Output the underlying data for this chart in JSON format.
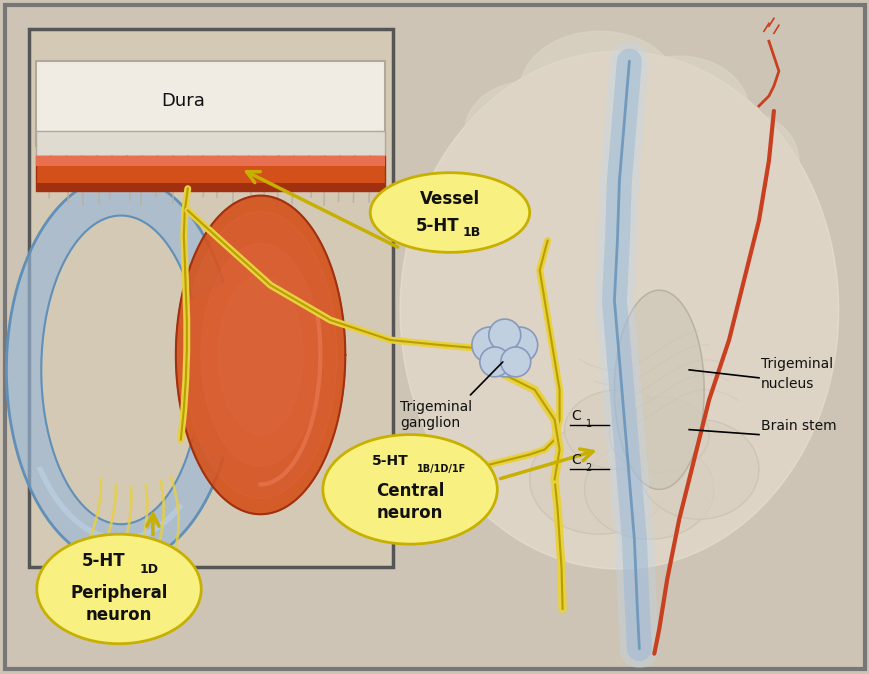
{
  "bg_color": "#cdc4b5",
  "fig_bg": "#cdc4b5",
  "border_color": "#777777",
  "inset_bg": "#d4c9b5",
  "inset_border": "#555555",
  "dura_color": "#f0ece4",
  "dura_stripe": "#c8c0b0",
  "vessel_orange": "#d4501a",
  "vessel_orange_light": "#e87050",
  "vessel_orange_dark": "#a03010",
  "blue_nerve": "#9ab8d8",
  "blue_nerve_dark": "#6090b8",
  "blue_nerve_light": "#c0d8ee",
  "red_nerve": "#c84020",
  "yellow_nerve": "#e8d040",
  "yellow_nerve_dark": "#b8a000",
  "ellipse_fill": "#f8f080",
  "ellipse_edge": "#c8b000",
  "brain_bg": "#ddd5c5",
  "brain_highlight": "#ede5d5",
  "arrow_color": "#c8b000",
  "text_color": "#111111",
  "labels": {
    "dura": "Dura",
    "vessel": "Vessel\n5-HT",
    "vessel_sub": "1B",
    "trigeminal_ganglion": "Trigeminal\nganglion",
    "peripheral": "5-HT",
    "peripheral_sub": "1D",
    "peripheral_rest": "\nPeripheral\nneuron",
    "central": "5-HT",
    "central_sub": "1B/1D/1F",
    "central_rest": "\nCentral\nneuron",
    "trigeminal_nucleus": "Trigeminal\nnucleus",
    "brain_stem": "Brain stem",
    "c1": "C",
    "c2": "C"
  }
}
